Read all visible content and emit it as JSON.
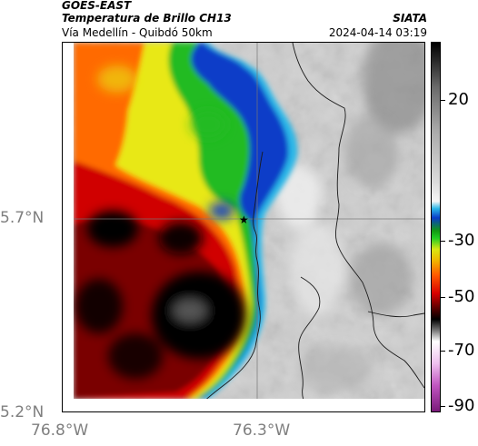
{
  "header": {
    "satellite": "GOES-EAST",
    "product": "Temperatura de Brillo CH13",
    "region": "Vía Medellín - Quibdó 50km",
    "organization": "SIATA",
    "timestamp": "2024-04-14 03:19"
  },
  "map": {
    "x_ticks": [
      "76.8°W",
      "76.3°W"
    ],
    "y_ticks": [
      "5.7°N",
      "5.2°N"
    ],
    "marker": "star-icon",
    "colors": {
      "deep_convection": "#000000",
      "cold_red": "#d00000",
      "orange": "#ff6a00",
      "yellow": "#e8e812",
      "green": "#22bb22",
      "blue": "#0a3cc8",
      "cyan": "#2ab7e8",
      "clear_gray": "#d2d2d2"
    }
  },
  "colorbar": {
    "labels": [
      "20",
      "-30",
      "-50",
      "-70",
      "-90"
    ]
  }
}
